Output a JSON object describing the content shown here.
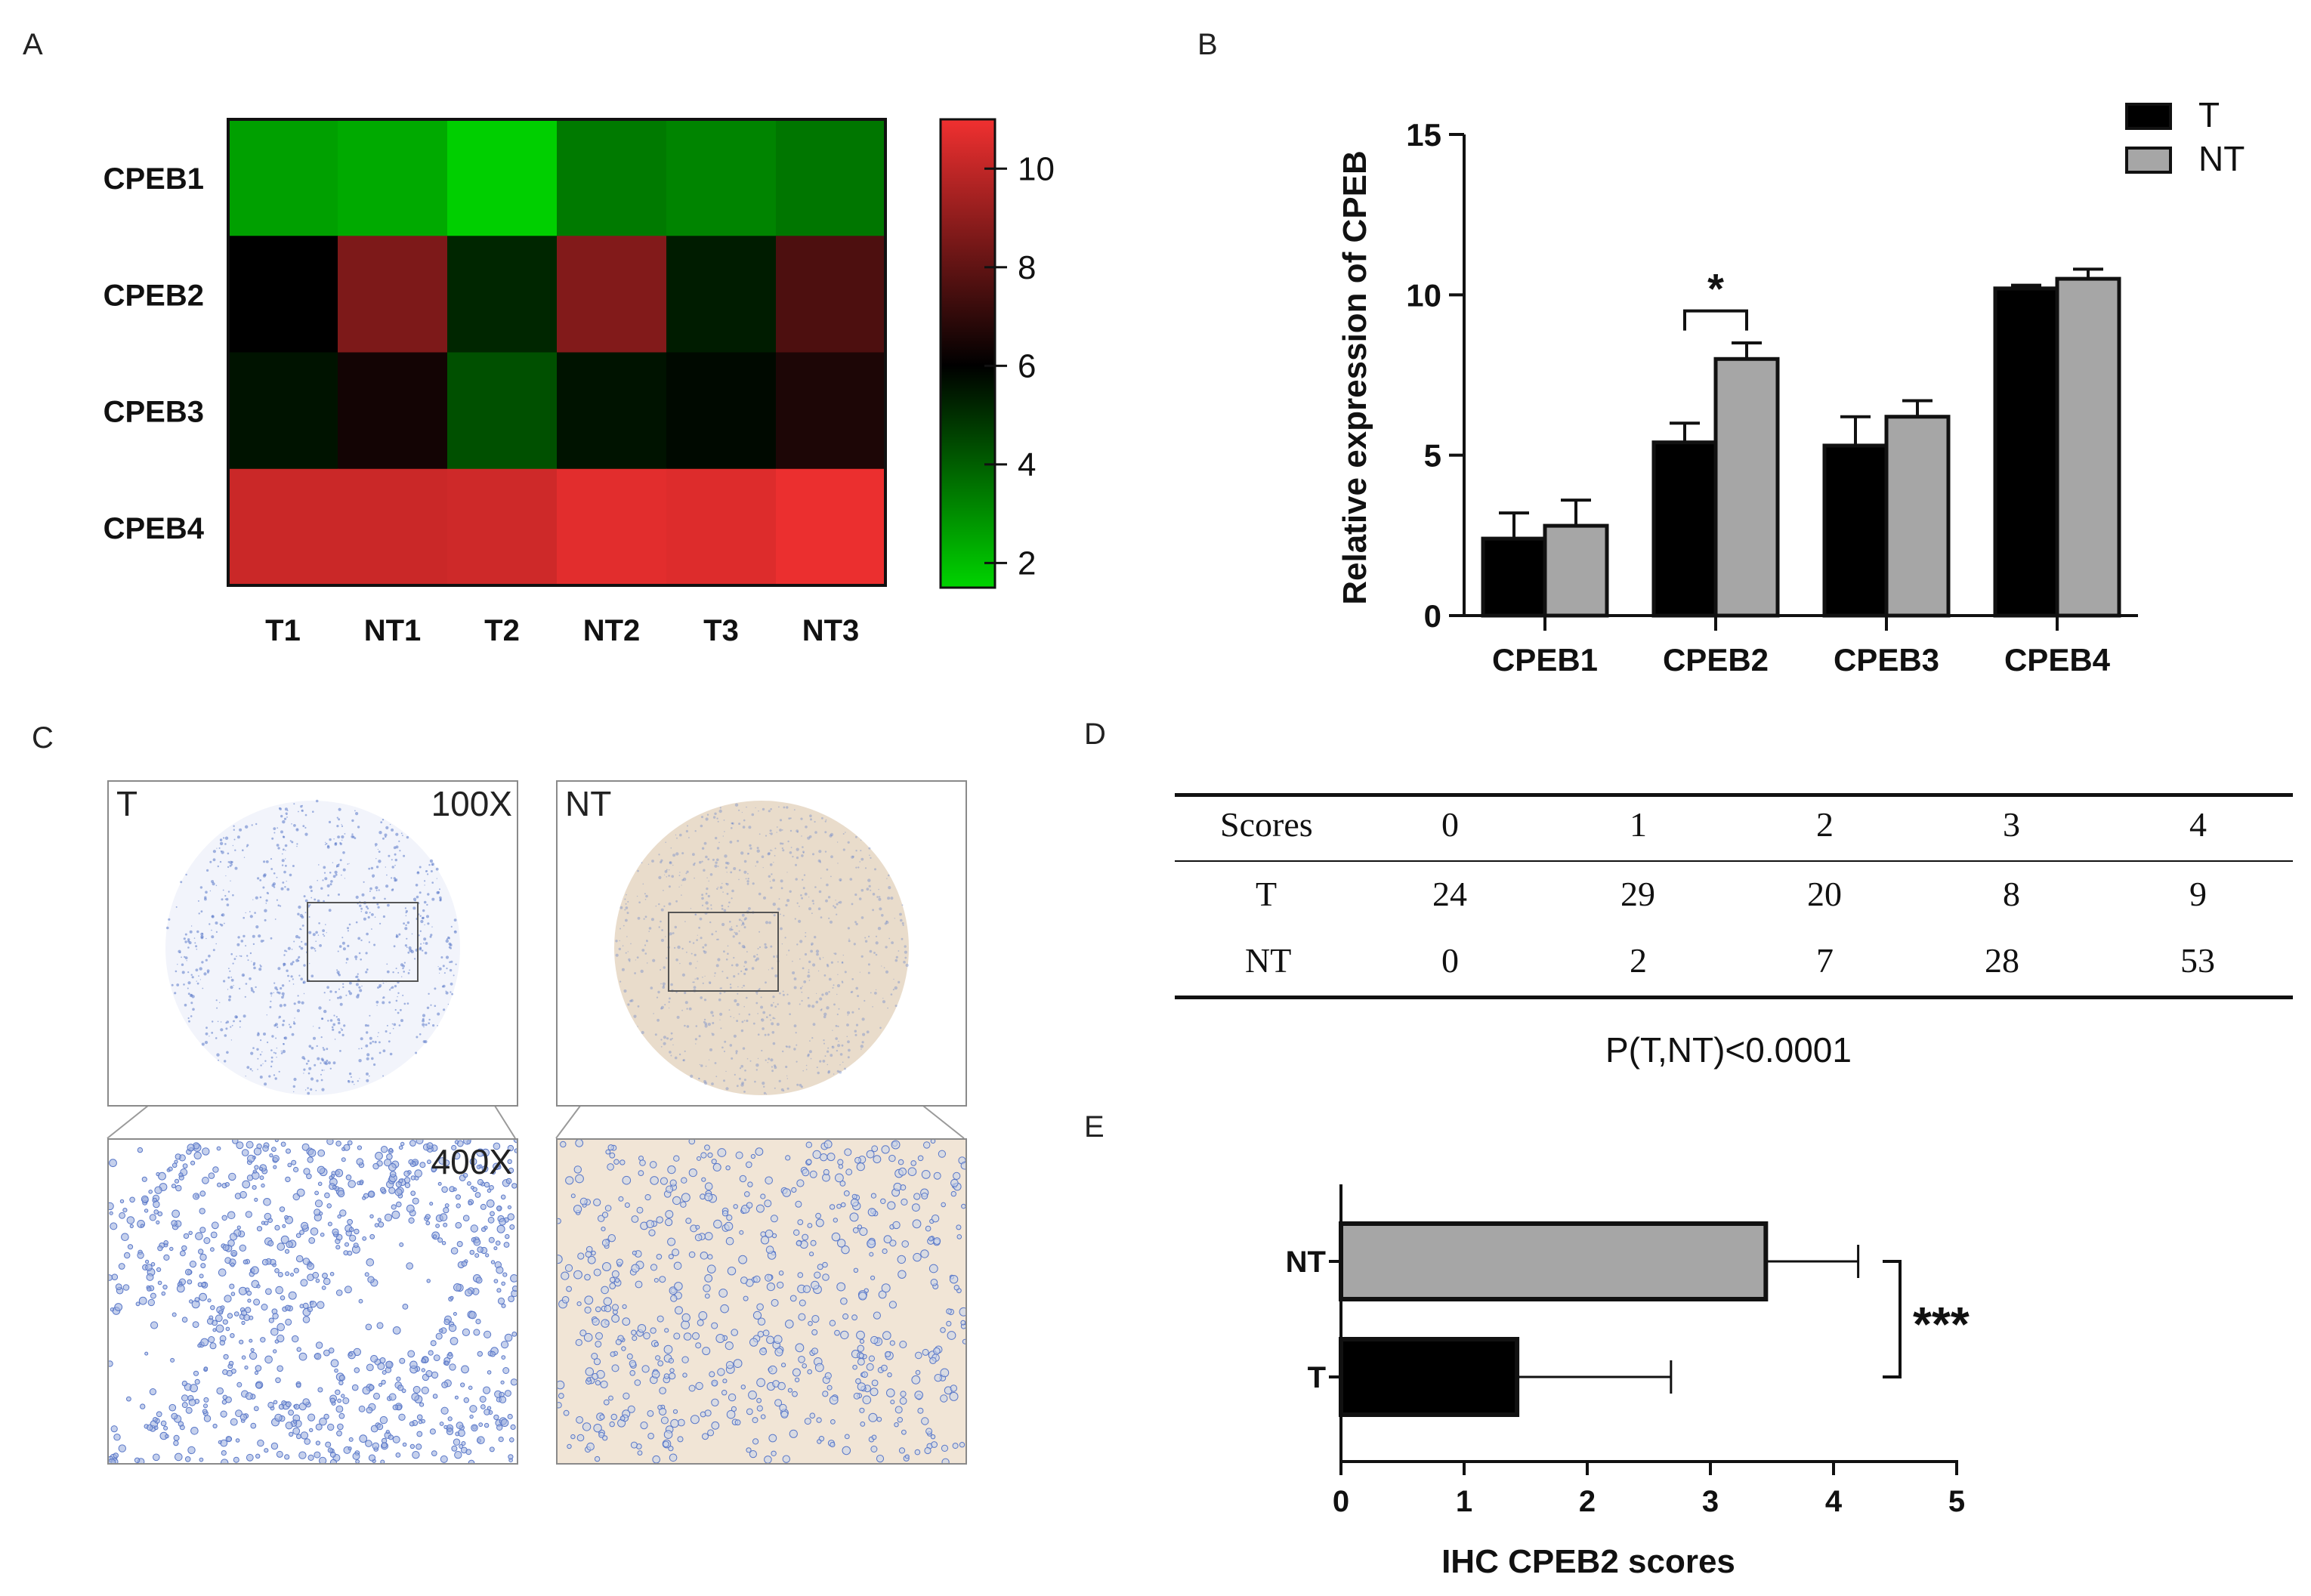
{
  "panels": {
    "a": "A",
    "b": "B",
    "c": "C",
    "d": "D",
    "e": "E"
  },
  "colors": {
    "low": "#00d400",
    "mid": "#000000",
    "high": "#f03030",
    "bar_T": "#000000",
    "bar_NT": "#a6a6a6",
    "he_blue": "#5a78c8",
    "he_beige": "#e9dccb"
  },
  "chart_data": [
    {
      "id": "heatmap",
      "type": "heatmap",
      "rows": [
        "CPEB1",
        "CPEB2",
        "CPEB3",
        "CPEB4"
      ],
      "columns": [
        "T1",
        "NT1",
        "T2",
        "NT2",
        "T3",
        "NT3"
      ],
      "values": [
        [
          2.6,
          2.4,
          1.6,
          3.4,
          3.2,
          3.5
        ],
        [
          6.0,
          8.6,
          5.2,
          8.7,
          5.4,
          7.6
        ],
        [
          5.6,
          6.4,
          4.3,
          5.6,
          5.8,
          6.6
        ],
        [
          10.2,
          10.2,
          10.3,
          10.7,
          10.6,
          10.9
        ]
      ],
      "scale": {
        "min": 1.5,
        "max": 11,
        "ticks": [
          2,
          4,
          6,
          8,
          10
        ]
      }
    },
    {
      "id": "bar_b",
      "type": "bar",
      "categories": [
        "CPEB1",
        "CPEB2",
        "CPEB3",
        "CPEB4"
      ],
      "series": [
        {
          "name": "T",
          "values": [
            2.4,
            5.4,
            5.3,
            10.2
          ],
          "errors": [
            0.8,
            0.6,
            0.9,
            0.1
          ]
        },
        {
          "name": "NT",
          "values": [
            2.8,
            8.0,
            6.2,
            10.5
          ],
          "errors": [
            0.8,
            0.5,
            0.5,
            0.3
          ]
        }
      ],
      "ylabel": "Relative expression of CPEB",
      "ylim": [
        0,
        15
      ],
      "yticks": [
        0,
        5,
        10,
        15
      ],
      "annotation": {
        "category": "CPEB2",
        "text": "*"
      }
    },
    {
      "id": "bar_e",
      "type": "bar",
      "orientation": "horizontal",
      "categories": [
        "NT",
        "T"
      ],
      "values": [
        3.45,
        1.43
      ],
      "errors": [
        0.75,
        1.25
      ],
      "xlabel": "IHC CPEB2 scores",
      "xlim": [
        0,
        5
      ],
      "xticks": [
        0,
        1,
        2,
        3,
        4,
        5
      ],
      "annotation": "***"
    }
  ],
  "ihc": {
    "t_label": "T",
    "nt_label": "NT",
    "low_mag": "100X",
    "high_mag": "400X"
  },
  "table": {
    "header": [
      "Scores",
      "0",
      "1",
      "2",
      "3",
      "4"
    ],
    "rows": [
      [
        "T",
        "24",
        "29",
        "20",
        "8",
        "9"
      ],
      [
        "NT",
        "0",
        "2",
        "7",
        "28",
        "53"
      ]
    ],
    "footnote": "P(T,NT)<0.0001"
  }
}
